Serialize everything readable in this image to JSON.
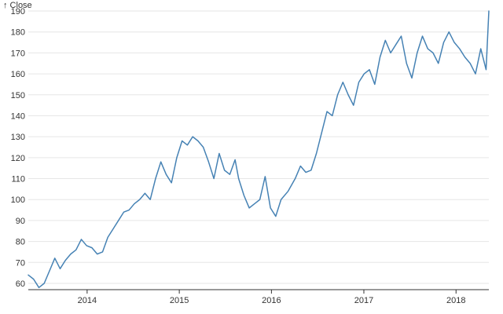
{
  "chart_data": {
    "type": "line",
    "title": "",
    "xlabel": "",
    "ylabel": "↑ Close",
    "xlim": [
      "2013-05-13",
      "2018-05-11"
    ],
    "ylim": [
      57,
      190
    ],
    "y_ticks": [
      60,
      70,
      80,
      90,
      100,
      110,
      120,
      130,
      140,
      150,
      160,
      170,
      180,
      190
    ],
    "x_ticks": [
      "2014",
      "2015",
      "2016",
      "2017",
      "2018"
    ],
    "grid": "horizontal",
    "line_color": "#4682b4",
    "series": [
      {
        "name": "",
        "x": [
          "2013-05-13",
          "2013-06-03",
          "2013-06-24",
          "2013-07-15",
          "2013-08-05",
          "2013-08-26",
          "2013-09-16",
          "2013-10-07",
          "2013-10-28",
          "2013-11-18",
          "2013-12-09",
          "2013-12-30",
          "2014-01-20",
          "2014-02-10",
          "2014-03-03",
          "2014-03-24",
          "2014-04-14",
          "2014-05-05",
          "2014-05-26",
          "2014-06-16",
          "2014-07-07",
          "2014-07-28",
          "2014-08-18",
          "2014-09-08",
          "2014-09-29",
          "2014-10-20",
          "2014-11-10",
          "2014-12-01",
          "2014-12-22",
          "2015-01-12",
          "2015-02-02",
          "2015-02-23",
          "2015-03-16",
          "2015-04-06",
          "2015-04-27",
          "2015-05-18",
          "2015-06-08",
          "2015-06-29",
          "2015-07-20",
          "2015-08-10",
          "2015-08-24",
          "2015-09-14",
          "2015-10-05",
          "2015-10-26",
          "2015-11-16",
          "2015-12-07",
          "2015-12-28",
          "2016-01-18",
          "2016-02-08",
          "2016-03-07",
          "2016-04-04",
          "2016-04-25",
          "2016-05-16",
          "2016-06-06",
          "2016-06-27",
          "2016-07-18",
          "2016-08-08",
          "2016-08-29",
          "2016-09-19",
          "2016-10-10",
          "2016-10-31",
          "2016-11-21",
          "2016-12-12",
          "2017-01-02",
          "2017-01-23",
          "2017-02-13",
          "2017-03-06",
          "2017-03-27",
          "2017-04-17",
          "2017-05-08",
          "2017-05-29",
          "2017-06-19",
          "2017-07-10",
          "2017-07-31",
          "2017-08-21",
          "2017-09-11",
          "2017-10-02",
          "2017-10-23",
          "2017-11-13",
          "2017-12-04",
          "2017-12-25",
          "2018-01-15",
          "2018-02-05",
          "2018-02-26",
          "2018-03-19",
          "2018-04-09",
          "2018-04-30",
          "2018-05-11"
        ],
        "y": [
          64,
          62,
          58,
          60,
          66,
          72,
          67,
          71,
          74,
          76,
          81,
          78,
          77,
          74,
          75,
          82,
          86,
          90,
          94,
          95,
          98,
          100,
          103,
          100,
          110,
          118,
          112,
          108,
          120,
          128,
          126,
          130,
          128,
          125,
          118,
          110,
          122,
          114,
          112,
          119,
          110,
          102,
          96,
          98,
          100,
          111,
          96,
          92,
          100,
          104,
          110,
          116,
          113,
          114,
          122,
          132,
          142,
          140,
          150,
          156,
          150,
          145,
          156,
          160,
          162,
          155,
          168,
          176,
          170,
          174,
          178,
          165,
          158,
          170,
          178,
          172,
          170,
          165,
          175,
          180,
          175,
          172,
          168,
          165,
          160,
          172,
          162,
          190
        ]
      }
    ]
  }
}
